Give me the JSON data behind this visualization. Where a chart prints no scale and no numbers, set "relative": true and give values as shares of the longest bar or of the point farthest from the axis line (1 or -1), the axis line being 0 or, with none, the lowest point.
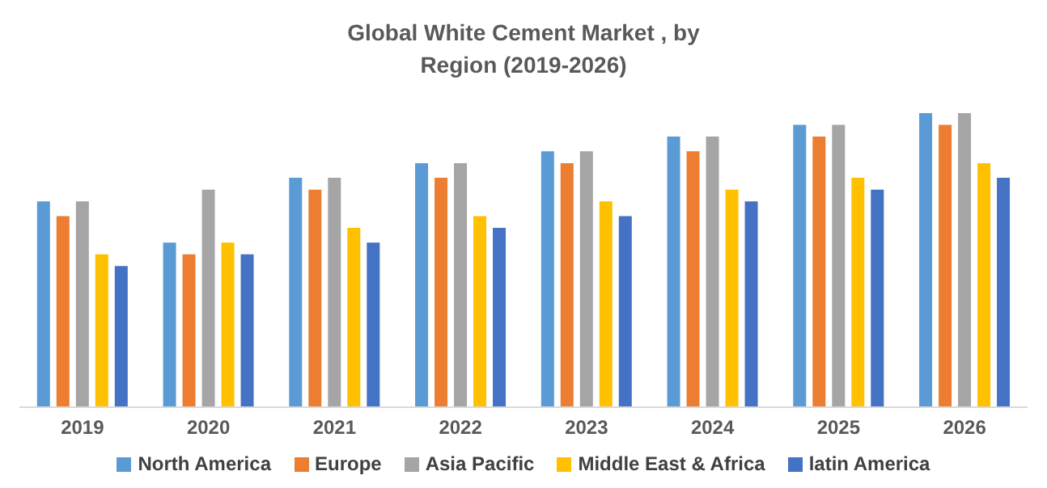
{
  "chart_data": {
    "type": "bar",
    "title": "Global White Cement Market , by Region (2019-2026)",
    "categories": [
      "2019",
      "2020",
      "2021",
      "2022",
      "2023",
      "2024",
      "2025",
      "2026"
    ],
    "relative": true,
    "legend": "bottom",
    "grid": false,
    "series": [
      {
        "name": "North America",
        "color": "#5b9bd5",
        "values": [
          0.7,
          0.56,
          0.78,
          0.83,
          0.87,
          0.92,
          0.96,
          1
        ]
      },
      {
        "name": "Europe",
        "color": "#ed7d31",
        "values": [
          0.65,
          0.52,
          0.74,
          0.78,
          0.83,
          0.87,
          0.92,
          0.96
        ]
      },
      {
        "name": "Asia Pacific",
        "color": "#a5a5a5",
        "values": [
          0.7,
          0.74,
          0.78,
          0.83,
          0.87,
          0.92,
          0.96,
          1
        ]
      },
      {
        "name": "Middle East & Africa",
        "color": "#ffc000",
        "values": [
          0.52,
          0.56,
          0.61,
          0.65,
          0.7,
          0.74,
          0.78,
          0.83
        ]
      },
      {
        "name": "latin America",
        "color": "#4472c4",
        "values": [
          0.48,
          0.52,
          0.56,
          0.61,
          0.65,
          0.7,
          0.74,
          0.78
        ]
      }
    ]
  }
}
